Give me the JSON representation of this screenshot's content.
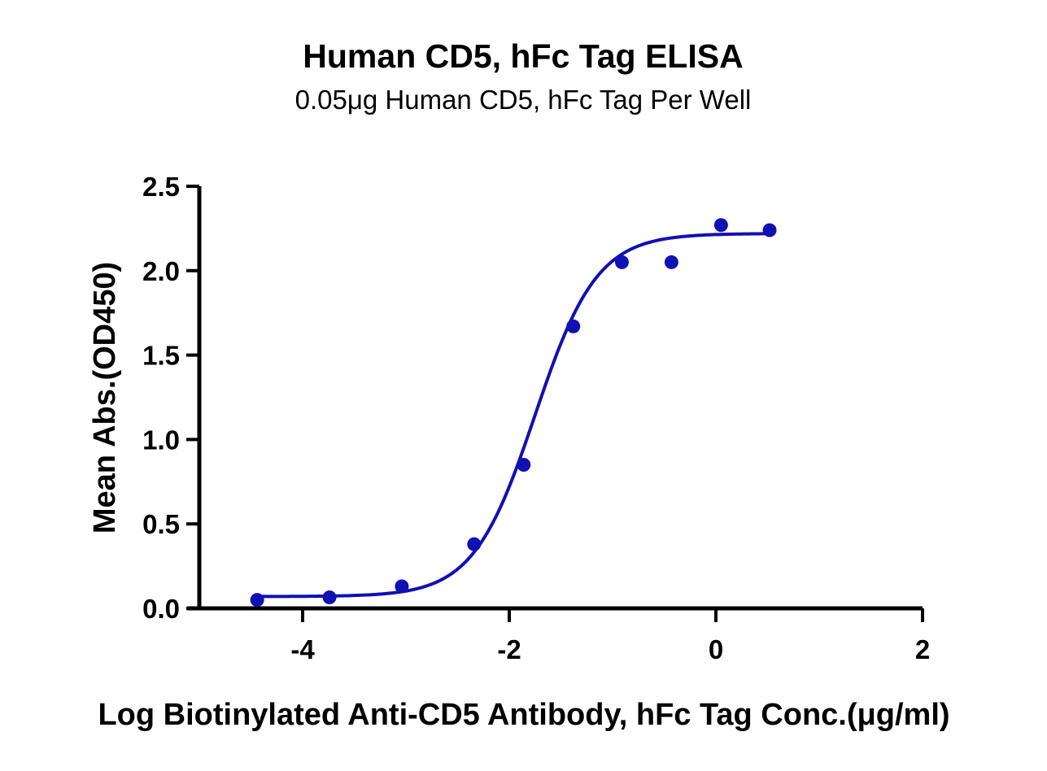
{
  "chart_data": {
    "type": "scatter",
    "title": "Human CD5, hFc Tag ELISA",
    "subtitle": "0.05μg Human CD5, hFc Tag Per Well",
    "xlabel": "Log Biotinylated Anti-CD5 Antibody, hFc Tag Conc.(μg/ml)",
    "ylabel": "Mean Abs.(OD450)",
    "xlim": [
      -5,
      2
    ],
    "ylim": [
      0,
      2.5
    ],
    "x_ticks": [
      "-4",
      "-2",
      "0",
      "2"
    ],
    "x_tick_values": [
      -4,
      -2,
      0,
      2
    ],
    "y_ticks": [
      "0.0",
      "0.5",
      "1.0",
      "1.5",
      "2.0",
      "2.5"
    ],
    "y_tick_values": [
      0,
      0.5,
      1.0,
      1.5,
      2.0,
      2.5
    ],
    "grid": false,
    "color": "#1010b4",
    "series": [
      {
        "points": [
          {
            "x": -4.44,
            "y": 0.05
          },
          {
            "x": -3.74,
            "y": 0.065
          },
          {
            "x": -3.04,
            "y": 0.13
          },
          {
            "x": -2.34,
            "y": 0.38
          },
          {
            "x": -1.86,
            "y": 0.85
          },
          {
            "x": -1.38,
            "y": 1.67
          },
          {
            "x": -0.91,
            "y": 2.05
          },
          {
            "x": -0.43,
            "y": 2.05
          },
          {
            "x": 0.05,
            "y": 2.27
          },
          {
            "x": 0.52,
            "y": 2.24
          }
        ],
        "fit": {
          "model": "four-parameter logistic",
          "bottom": 0.07,
          "top": 2.22,
          "log_ec50": -1.75,
          "hill_slope": 1.45,
          "x_start": -4.44,
          "x_end": 0.52
        }
      }
    ]
  }
}
